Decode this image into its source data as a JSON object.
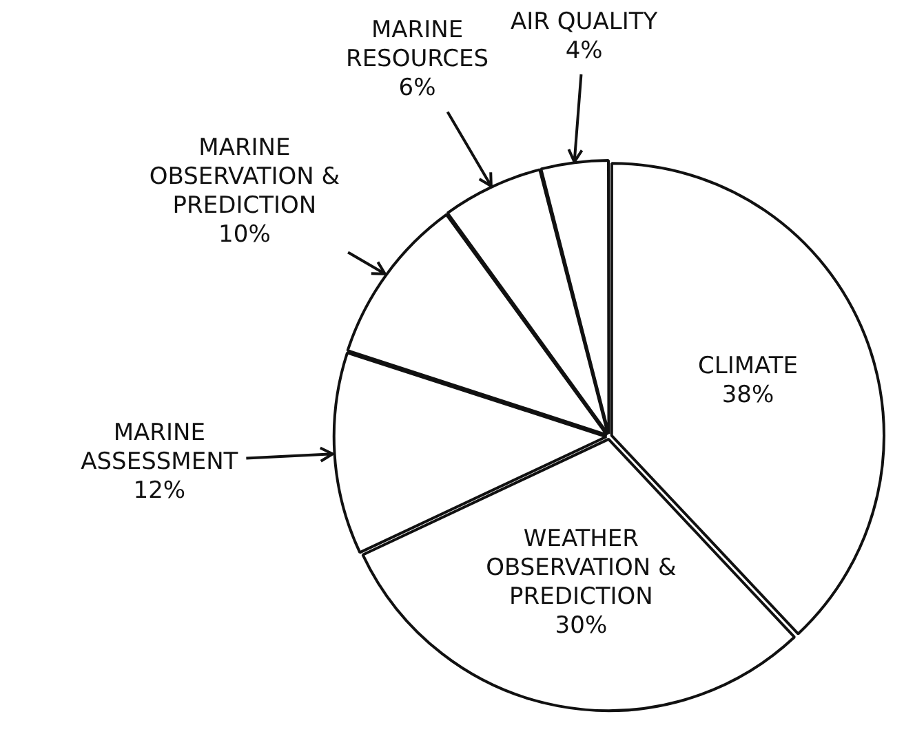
{
  "chart_data": {
    "type": "pie",
    "categories": [
      "CLIMATE",
      "WEATHER OBSERVATION & PREDICTION",
      "MARINE ASSESSMENT",
      "MARINE OBSERVATION & PREDICTION",
      "MARINE RESOURCES",
      "AIR QUALITY"
    ],
    "values": [
      38,
      30,
      12,
      10,
      6,
      4
    ],
    "value_labels": [
      "38%",
      "30%",
      "12%",
      "10%",
      "6%",
      "4%"
    ],
    "colors": [
      "#ffffff",
      "#ffffff",
      "#ffffff",
      "#ffffff",
      "#ffffff",
      "#ffffff"
    ],
    "legend": false
  }
}
